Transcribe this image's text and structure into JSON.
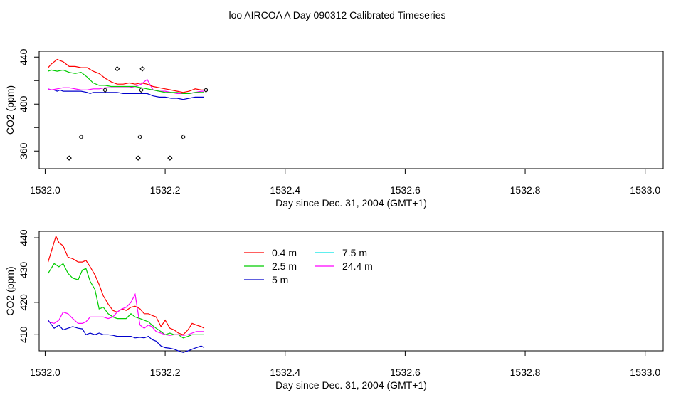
{
  "title": "loo AIRCOA A  Day 090312  Calibrated Timeseries",
  "chart_data": [
    {
      "type": "line",
      "xlabel": "Day since Dec. 31, 2004 (GMT+1)",
      "ylabel": "CO2 (ppm)",
      "xlim": [
        1531.99,
        1533.03
      ],
      "ylim": [
        345,
        445
      ],
      "x_ticks": [
        "1532.0",
        "1532.2",
        "1532.4",
        "1532.6",
        "1532.8",
        "1533.0"
      ],
      "y_ticks": [
        "360",
        "400",
        "440"
      ],
      "legend": "none",
      "series": [
        {
          "color": "#0000cc",
          "x": [
            1532.005,
            1532.01,
            1532.015,
            1532.02,
            1532.025,
            1532.03,
            1532.04,
            1532.05,
            1532.06,
            1532.07,
            1532.075,
            1532.08,
            1532.09,
            1532.1,
            1532.11,
            1532.12,
            1532.13,
            1532.14,
            1532.15,
            1532.16,
            1532.17,
            1532.18,
            1532.19,
            1532.2,
            1532.21,
            1532.22,
            1532.23,
            1532.24,
            1532.25,
            1532.26,
            1532.265
          ],
          "y": [
            413,
            412,
            412,
            411,
            412,
            411,
            411,
            411,
            411,
            410,
            409,
            410,
            410,
            410,
            410,
            410,
            409,
            409,
            409,
            409,
            409,
            407,
            406,
            406,
            405,
            405,
            404,
            405,
            406,
            406,
            406
          ]
        },
        {
          "color": "#ff00ff",
          "x": [
            1532.005,
            1532.01,
            1532.02,
            1532.03,
            1532.04,
            1532.05,
            1532.06,
            1532.07,
            1532.08,
            1532.09,
            1532.1,
            1532.11,
            1532.12,
            1532.13,
            1532.14,
            1532.15,
            1532.16,
            1532.17,
            1532.18,
            1532.19,
            1532.2,
            1532.21,
            1532.22,
            1532.23,
            1532.24,
            1532.25,
            1532.26,
            1532.265
          ],
          "y": [
            413,
            412,
            413,
            414,
            414,
            413,
            412,
            412,
            413,
            413,
            414,
            414,
            414,
            414,
            414,
            415,
            417,
            421,
            412,
            411,
            411,
            410,
            409,
            409,
            409,
            410,
            411,
            411
          ]
        },
        {
          "color": "#00cc00",
          "x": [
            1532.005,
            1532.01,
            1532.02,
            1532.03,
            1532.04,
            1532.05,
            1532.06,
            1532.07,
            1532.08,
            1532.09,
            1532.1,
            1532.11,
            1532.12,
            1532.13,
            1532.14,
            1532.15,
            1532.16,
            1532.17,
            1532.18,
            1532.19,
            1532.2,
            1532.21,
            1532.22,
            1532.23,
            1532.24,
            1532.25,
            1532.26,
            1532.265
          ],
          "y": [
            428,
            429,
            428,
            429,
            427,
            426,
            427,
            423,
            418,
            416,
            416,
            415,
            415,
            415,
            415,
            415,
            414,
            413,
            412,
            411,
            410,
            410,
            410,
            409,
            409,
            410,
            410,
            410
          ]
        },
        {
          "color": "#ff0000",
          "x": [
            1532.005,
            1532.01,
            1532.02,
            1532.03,
            1532.04,
            1532.05,
            1532.06,
            1532.07,
            1532.08,
            1532.09,
            1532.1,
            1532.11,
            1532.12,
            1532.13,
            1532.14,
            1532.15,
            1532.16,
            1532.17,
            1532.18,
            1532.19,
            1532.2,
            1532.21,
            1532.22,
            1532.23,
            1532.24,
            1532.25,
            1532.26,
            1532.265
          ],
          "y": [
            431,
            434,
            438,
            436,
            432,
            432,
            431,
            431,
            428,
            426,
            422,
            419,
            417,
            417,
            418,
            417,
            418,
            417,
            415,
            414,
            413,
            412,
            411,
            410,
            411,
            413,
            412,
            412
          ]
        }
      ],
      "points": {
        "x": [
          1532.04,
          1532.06,
          1532.1,
          1532.12,
          1532.155,
          1532.158,
          1532.16,
          1532.162,
          1532.208,
          1532.23,
          1532.268
        ],
        "y": [
          354,
          372,
          412,
          430,
          354,
          372,
          412,
          430,
          354,
          372,
          412
        ]
      }
    },
    {
      "type": "line",
      "xlabel": "Day since Dec. 31, 2004 (GMT+1)",
      "ylabel": "CO2 (ppm)",
      "xlim": [
        1531.99,
        1533.03
      ],
      "ylim": [
        405,
        442
      ],
      "x_ticks": [
        "1532.0",
        "1532.2",
        "1532.4",
        "1532.6",
        "1532.8",
        "1533.0"
      ],
      "y_ticks": [
        "410",
        "420",
        "430",
        "440"
      ],
      "legend": "upper-left",
      "series": [
        {
          "name": "0.4 m",
          "color": "#ff0000",
          "x": [
            1532.005,
            1532.018,
            1532.023,
            1532.03,
            1532.038,
            1532.046,
            1532.055,
            1532.062,
            1532.068,
            1532.075,
            1532.083,
            1532.09,
            1532.097,
            1532.105,
            1532.113,
            1532.12,
            1532.128,
            1532.135,
            1532.143,
            1532.15,
            1532.158,
            1532.165,
            1532.172,
            1532.178,
            1532.185,
            1532.193,
            1532.2,
            1532.208,
            1532.215,
            1532.222,
            1532.23,
            1532.238,
            1532.245,
            1532.252,
            1532.26,
            1532.265
          ],
          "y": [
            432.5,
            440.5,
            438.5,
            437.5,
            434,
            433.5,
            432.5,
            432.5,
            433,
            431,
            428.5,
            425.5,
            422,
            419.5,
            417.5,
            417,
            418,
            417.5,
            418.5,
            418.8,
            418,
            416.5,
            416.5,
            416,
            415.5,
            412.5,
            414.5,
            412,
            411.5,
            410.5,
            410,
            411.5,
            413.5,
            413,
            412.5,
            412
          ]
        },
        {
          "name": "2.5 m",
          "color": "#00cc00",
          "x": [
            1532.005,
            1532.015,
            1532.023,
            1532.03,
            1532.038,
            1532.046,
            1532.055,
            1532.062,
            1532.068,
            1532.075,
            1532.083,
            1532.09,
            1532.097,
            1532.105,
            1532.113,
            1532.12,
            1532.128,
            1532.135,
            1532.143,
            1532.15,
            1532.158,
            1532.165,
            1532.172,
            1532.178,
            1532.185,
            1532.193,
            1532.2,
            1532.208,
            1532.215,
            1532.222,
            1532.23,
            1532.238,
            1532.245,
            1532.252,
            1532.26,
            1532.265
          ],
          "y": [
            429,
            432,
            431,
            432,
            429,
            427.5,
            427,
            430,
            430.5,
            426.5,
            424,
            418,
            418.5,
            416.5,
            415.5,
            415,
            415,
            415,
            416.5,
            415.5,
            415,
            414.5,
            414,
            413,
            412,
            411,
            410,
            410.5,
            410,
            410,
            409,
            409.5,
            410,
            410,
            410,
            410
          ]
        },
        {
          "name": "5 m",
          "color": "#0000cc",
          "x": [
            1532.005,
            1532.015,
            1532.023,
            1532.03,
            1532.038,
            1532.046,
            1532.055,
            1532.062,
            1532.068,
            1532.075,
            1532.083,
            1532.09,
            1532.097,
            1532.105,
            1532.113,
            1532.12,
            1532.128,
            1532.135,
            1532.143,
            1532.15,
            1532.158,
            1532.165,
            1532.172,
            1532.178,
            1532.185,
            1532.193,
            1532.2,
            1532.208,
            1532.215,
            1532.222,
            1532.23,
            1532.238,
            1532.245,
            1532.252,
            1532.26,
            1532.265
          ],
          "y": [
            414.5,
            412,
            413,
            411.5,
            412,
            412.5,
            412,
            411.8,
            410,
            410.5,
            410,
            410.5,
            410,
            410,
            409.8,
            409.5,
            409.5,
            409.5,
            409.5,
            409,
            409.2,
            409,
            409.5,
            408.5,
            408,
            406.5,
            406,
            405.8,
            405.5,
            405,
            404.5,
            405,
            405.5,
            406,
            406.5,
            406
          ]
        },
        {
          "name": "7.5 m",
          "color": "#00e5e5",
          "x": [],
          "y": []
        },
        {
          "name": "24.4 m",
          "color": "#ff00ff",
          "x": [
            1532.005,
            1532.015,
            1532.023,
            1532.03,
            1532.038,
            1532.046,
            1532.055,
            1532.062,
            1532.068,
            1532.075,
            1532.083,
            1532.09,
            1532.097,
            1532.105,
            1532.113,
            1532.12,
            1532.128,
            1532.135,
            1532.143,
            1532.15,
            1532.158,
            1532.165,
            1532.172,
            1532.178,
            1532.185,
            1532.193,
            1532.2,
            1532.208,
            1532.215,
            1532.222,
            1532.23,
            1532.238,
            1532.245,
            1532.252,
            1532.26,
            1532.265
          ],
          "y": [
            414,
            413.5,
            414.5,
            417,
            416.5,
            415,
            413.5,
            413.5,
            414,
            415.5,
            415.5,
            415.5,
            415.5,
            415,
            415.5,
            417,
            418,
            418.5,
            420,
            422.5,
            413,
            412,
            413,
            412.5,
            411,
            410.5,
            410,
            409.8,
            410,
            410,
            409.8,
            410,
            410.5,
            411,
            411,
            411
          ]
        }
      ]
    }
  ]
}
